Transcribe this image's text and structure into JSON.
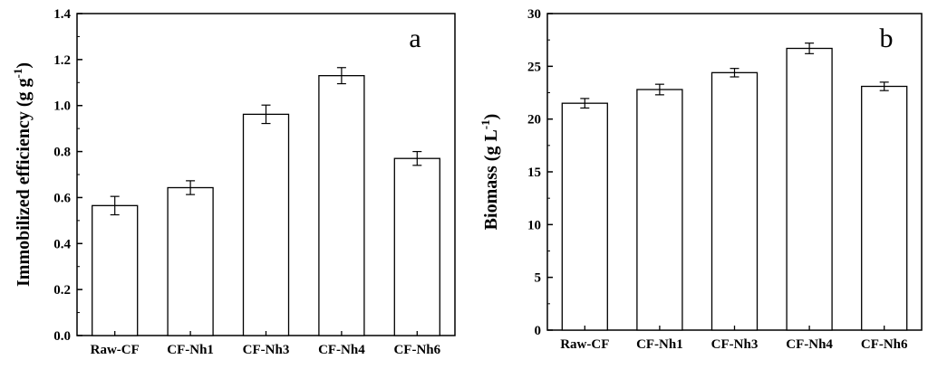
{
  "chart_data": [
    {
      "type": "bar",
      "panel_label": "a",
      "ylabel": "Immobilized efficiency",
      "ylabel_unit": "(g g",
      "ylabel_unit_sup": "-1",
      "ylabel_unit_close": ")",
      "categories": [
        "Raw-CF",
        "CF-Nh1",
        "CF-Nh3",
        "CF-Nh4",
        "CF-Nh6"
      ],
      "values": [
        0.565,
        0.643,
        0.962,
        1.13,
        0.77
      ],
      "errors": [
        0.04,
        0.03,
        0.04,
        0.035,
        0.03
      ],
      "ylim": [
        0,
        1.4
      ],
      "yticks": [
        "0.0",
        "0.2",
        "0.4",
        "0.6",
        "0.8",
        "1.0",
        "1.2",
        "1.4"
      ],
      "grid": false
    },
    {
      "type": "bar",
      "panel_label": "b",
      "ylabel": "Biomass",
      "ylabel_unit": "(g L",
      "ylabel_unit_sup": "-1",
      "ylabel_unit_close": ")",
      "categories": [
        "Raw-CF",
        "CF-Nh1",
        "CF-Nh3",
        "CF-Nh4",
        "CF-Nh6"
      ],
      "values": [
        21.5,
        22.8,
        24.4,
        26.7,
        23.1
      ],
      "errors": [
        0.45,
        0.5,
        0.4,
        0.5,
        0.4
      ],
      "ylim": [
        0,
        30
      ],
      "yticks": [
        "0",
        "5",
        "10",
        "15",
        "20",
        "25",
        "30"
      ],
      "grid": false
    }
  ]
}
